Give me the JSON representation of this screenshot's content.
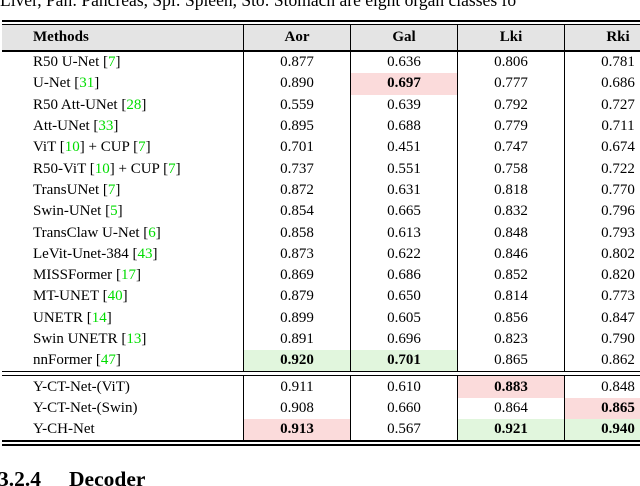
{
  "top_caption": "Liver, Pan: Pancreas, Spl: Spleen, Sto: Stomach are eight organ classes fo",
  "section": {
    "number": "3.2.4",
    "title": "Decoder"
  },
  "colors": {
    "highlight_pink": "#fbdbdb",
    "highlight_green": "#e1f6dd",
    "header_bg": "#e4e4e4",
    "citation_green": "#00dd00"
  },
  "table": {
    "columns": [
      "Methods",
      "Aor",
      "Gal",
      "Lki",
      "Rki"
    ],
    "groups": [
      {
        "rows": [
          {
            "method": "R50 U-Net [7]",
            "cells": [
              {
                "v": "0.877"
              },
              {
                "v": "0.636"
              },
              {
                "v": "0.806"
              },
              {
                "v": "0.781"
              }
            ]
          },
          {
            "method": "U-Net [31]",
            "cells": [
              {
                "v": "0.890"
              },
              {
                "v": "0.697",
                "hl": "pink",
                "bold": true
              },
              {
                "v": "0.777"
              },
              {
                "v": "0.686"
              }
            ]
          },
          {
            "method": "R50 Att-UNet [28]",
            "cells": [
              {
                "v": "0.559"
              },
              {
                "v": "0.639"
              },
              {
                "v": "0.792"
              },
              {
                "v": "0.727"
              }
            ]
          },
          {
            "method": "Att-UNet [33]",
            "cells": [
              {
                "v": "0.895"
              },
              {
                "v": "0.688"
              },
              {
                "v": "0.779"
              },
              {
                "v": "0.711"
              }
            ]
          },
          {
            "method": "ViT [10] + CUP [7]",
            "cells": [
              {
                "v": "0.701"
              },
              {
                "v": "0.451"
              },
              {
                "v": "0.747"
              },
              {
                "v": "0.674"
              }
            ]
          },
          {
            "method": "R50-ViT [10] + CUP [7]",
            "cells": [
              {
                "v": "0.737"
              },
              {
                "v": "0.551"
              },
              {
                "v": "0.758"
              },
              {
                "v": "0.722"
              }
            ]
          },
          {
            "method": "TransUNet [7]",
            "cells": [
              {
                "v": "0.872"
              },
              {
                "v": "0.631"
              },
              {
                "v": "0.818"
              },
              {
                "v": "0.770"
              }
            ]
          },
          {
            "method": "Swin-UNet [5]",
            "cells": [
              {
                "v": "0.854"
              },
              {
                "v": "0.665"
              },
              {
                "v": "0.832"
              },
              {
                "v": "0.796"
              }
            ]
          },
          {
            "method": "TransClaw U-Net [6]",
            "cells": [
              {
                "v": "0.858"
              },
              {
                "v": "0.613"
              },
              {
                "v": "0.848"
              },
              {
                "v": "0.793"
              }
            ]
          },
          {
            "method": "LeVit-Unet-384 [43]",
            "cells": [
              {
                "v": "0.873"
              },
              {
                "v": "0.622"
              },
              {
                "v": "0.846"
              },
              {
                "v": "0.802"
              }
            ]
          },
          {
            "method": "MISSFormer [17]",
            "cells": [
              {
                "v": "0.869"
              },
              {
                "v": "0.686"
              },
              {
                "v": "0.852"
              },
              {
                "v": "0.820"
              }
            ]
          },
          {
            "method": "MT-UNET [40]",
            "cells": [
              {
                "v": "0.879"
              },
              {
                "v": "0.650"
              },
              {
                "v": "0.814"
              },
              {
                "v": "0.773"
              }
            ]
          },
          {
            "method": "UNETR [14]",
            "cells": [
              {
                "v": "0.899"
              },
              {
                "v": "0.605"
              },
              {
                "v": "0.856"
              },
              {
                "v": "0.847"
              }
            ]
          },
          {
            "method": "Swin UNETR [13]",
            "cells": [
              {
                "v": "0.891"
              },
              {
                "v": "0.696"
              },
              {
                "v": "0.823"
              },
              {
                "v": "0.790"
              }
            ]
          },
          {
            "method": "nnFormer [47]",
            "cells": [
              {
                "v": "0.920",
                "hl": "green",
                "bold": true
              },
              {
                "v": "0.701",
                "hl": "green",
                "bold": true
              },
              {
                "v": "0.865"
              },
              {
                "v": "0.862"
              }
            ]
          }
        ]
      },
      {
        "rows": [
          {
            "method": "Y-CT-Net-(ViT)",
            "cells": [
              {
                "v": "0.911"
              },
              {
                "v": "0.610"
              },
              {
                "v": "0.883",
                "hl": "pink",
                "bold": true
              },
              {
                "v": "0.848"
              }
            ]
          },
          {
            "method": "Y-CT-Net-(Swin)",
            "cells": [
              {
                "v": "0.908"
              },
              {
                "v": "0.660"
              },
              {
                "v": "0.864"
              },
              {
                "v": "0.865",
                "hl": "pink",
                "bold": true
              }
            ]
          },
          {
            "method": "Y-CH-Net",
            "cells": [
              {
                "v": "0.913",
                "hl": "pink",
                "bold": true
              },
              {
                "v": "0.567"
              },
              {
                "v": "0.921",
                "hl": "green",
                "bold": true
              },
              {
                "v": "0.940",
                "hl": "green",
                "bold": true
              }
            ]
          }
        ]
      }
    ]
  }
}
